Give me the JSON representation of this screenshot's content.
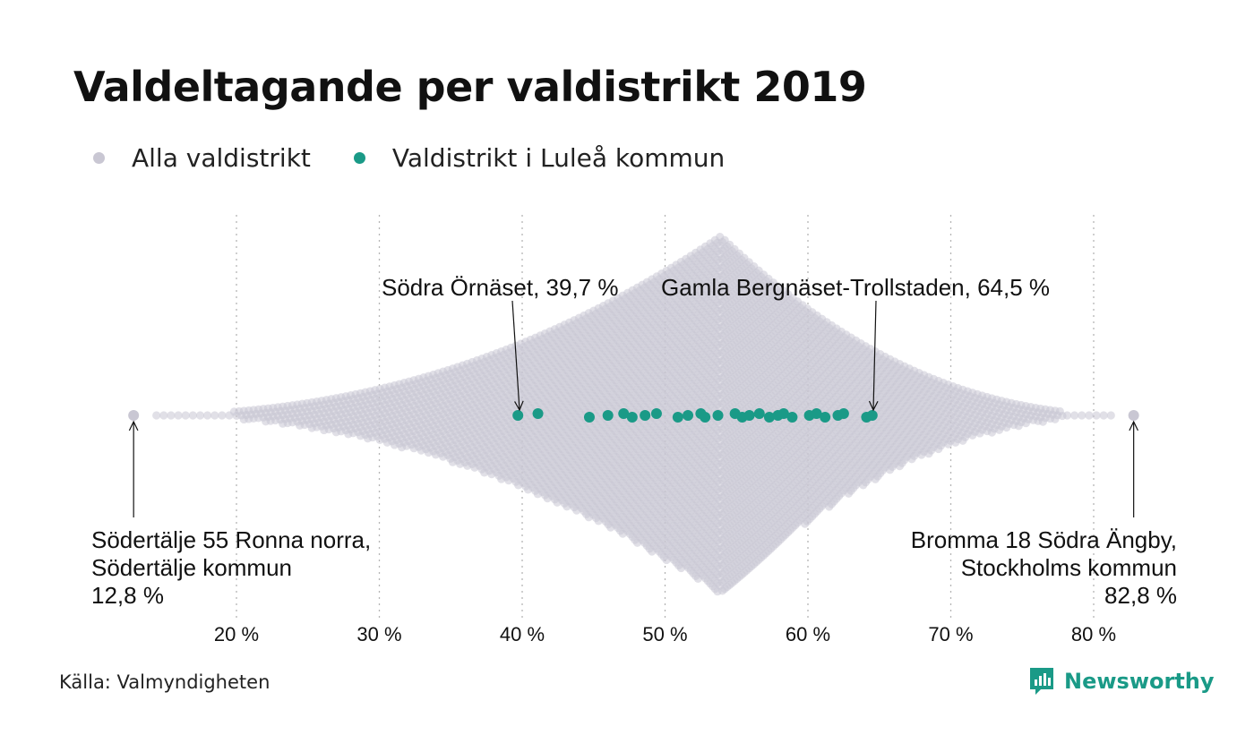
{
  "title": "Valdeltagande per valdistrikt 2019",
  "legend": [
    {
      "label": "Alla valdistrikt",
      "color": "#c9c7d3"
    },
    {
      "label": "Valdistrikt i Luleå kommun",
      "color": "#1a9a87"
    }
  ],
  "source": "Källa: Valmyndigheten",
  "brand": {
    "name": "Newsworthy",
    "icon": "newsworthy-logo-icon",
    "color": "#1a9a87"
  },
  "chart_data": {
    "type": "scatter",
    "subtype": "beeswarm",
    "title": "Valdeltagande per valdistrikt 2019",
    "xlim": [
      10,
      85
    ],
    "x_ticks": [
      {
        "value": 20,
        "label": "20 %"
      },
      {
        "value": 30,
        "label": "30 %"
      },
      {
        "value": 40,
        "label": "40 %"
      },
      {
        "value": 50,
        "label": "50 %"
      },
      {
        "value": 60,
        "label": "60 %"
      },
      {
        "value": 70,
        "label": "70 %"
      },
      {
        "value": 80,
        "label": "80 %"
      }
    ],
    "grid": "vertical dotted",
    "legend_position": "top-left",
    "series": [
      {
        "name": "Alla valdistrikt",
        "color": "#c9c7d3",
        "range": [
          12.8,
          82.8
        ],
        "peak": 53.9
      },
      {
        "name": "Valdistrikt i Luleå kommun",
        "color": "#1a9a87",
        "values": [
          39.7,
          41.1,
          44.7,
          46.0,
          47.1,
          47.7,
          48.6,
          49.4,
          50.9,
          51.6,
          52.5,
          52.8,
          53.7,
          54.9,
          55.4,
          55.9,
          56.6,
          57.3,
          57.9,
          58.3,
          58.9,
          60.1,
          60.6,
          61.2,
          62.1,
          62.5,
          64.1,
          64.5
        ]
      }
    ],
    "annotations": [
      {
        "x": 12.8,
        "lines": [
          "Södertälje 55 Ronna norra,",
          "Södertälje kommun",
          "12,8 %"
        ]
      },
      {
        "x": 82.8,
        "lines": [
          "Bromma 18 Södra Ängby,",
          "Stockholms kommun",
          "82,8 %"
        ]
      },
      {
        "x": 39.7,
        "lines": [
          "Södra Örnäset, 39,7 %"
        ]
      },
      {
        "x": 64.5,
        "lines": [
          "Gamla Bergnäset-Trollstaden, 64,5 %"
        ]
      }
    ]
  }
}
